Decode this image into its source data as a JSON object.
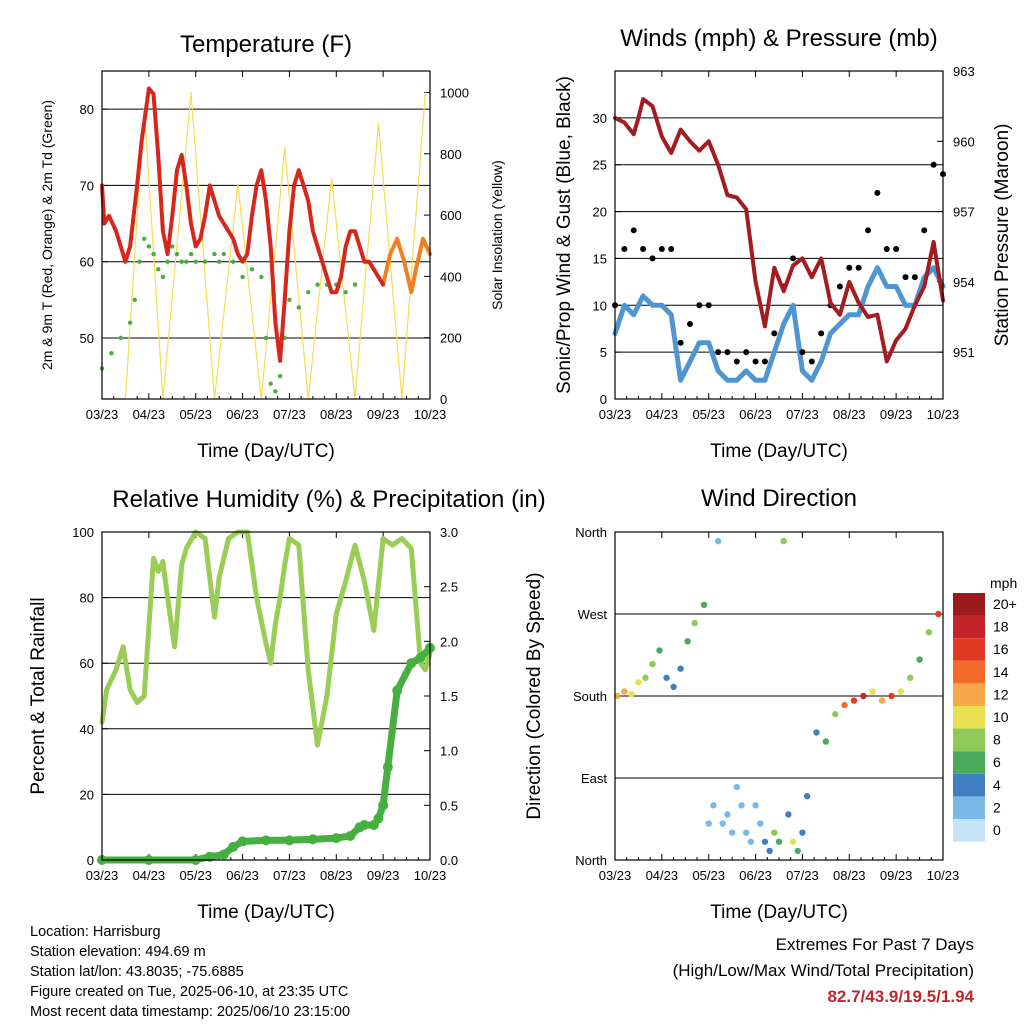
{
  "colors": {
    "temp_red": "#d7261c",
    "temp_orange": "#f07f22",
    "dewpoint_green": "#47b03a",
    "solar_yellow": "#f7dc53",
    "wind_blue": "#4f95d0",
    "gust_black": "#000000",
    "pressure_maroon": "#a41c1f",
    "rh_green": "#9acd55",
    "rain_green": "#45b03f",
    "extremes_red": "#c0272d"
  },
  "shared_x_ticks": [
    "03/23",
    "04/23",
    "05/23",
    "06/23",
    "07/23",
    "08/23",
    "09/23",
    "10/23"
  ],
  "shared_x_label": "Time (Day/UTC)",
  "chart_data": [
    {
      "id": "temperature",
      "type": "line",
      "title": "Temperature (F)",
      "xlabel": "Time (Day/UTC)",
      "ylabel": "2m & 9m T (Red, Orange) & 2m Td (Green)",
      "y2label": "Solar Insolation (Yellow)",
      "xlim": [
        0,
        7
      ],
      "ylim": [
        42,
        85
      ],
      "yticks": [
        50,
        60,
        70,
        80
      ],
      "y2lim": [
        0,
        1070
      ],
      "y2ticks": [
        0,
        200,
        400,
        600,
        800,
        1000
      ],
      "series": [
        {
          "key": "t2m",
          "x": [
            0.0,
            0.05,
            0.15,
            0.3,
            0.5,
            0.6,
            0.75,
            0.85,
            1.0,
            1.1,
            1.2,
            1.3,
            1.4,
            1.5,
            1.6,
            1.7,
            1.8,
            1.9,
            2.0,
            2.1,
            2.2,
            2.3,
            2.4,
            2.5,
            2.6,
            2.7,
            2.8,
            2.9,
            3.0,
            3.1,
            3.2,
            3.3,
            3.4,
            3.5,
            3.6,
            3.7,
            3.8,
            3.9,
            4.0,
            4.1,
            4.2,
            4.3,
            4.4,
            4.5,
            4.6,
            4.7,
            4.8,
            4.9,
            5.0,
            5.1,
            5.2,
            5.3,
            5.4,
            5.5,
            5.6,
            5.7,
            5.8,
            5.9,
            6.0
          ],
          "values": [
            70,
            65,
            66,
            64,
            60,
            62,
            70,
            76,
            82.7,
            82,
            74,
            64,
            61,
            66,
            72,
            74,
            70,
            65,
            62,
            63,
            66,
            70,
            68,
            66,
            65,
            64,
            63,
            61,
            60,
            61,
            66,
            70,
            72,
            68,
            62,
            52,
            47,
            55,
            64,
            70,
            72,
            70,
            68,
            64,
            62,
            60,
            58,
            56,
            56,
            58,
            62,
            64,
            64,
            62,
            60,
            60,
            59,
            58,
            57
          ]
        },
        {
          "key": "t9m",
          "x": [
            6.0,
            6.15,
            6.3,
            6.45,
            6.6,
            6.7,
            6.85,
            7.0
          ],
          "values": [
            57,
            61,
            63,
            60,
            56,
            59,
            63,
            61
          ]
        },
        {
          "key": "td2m",
          "x": [
            0.0,
            0.2,
            0.4,
            0.6,
            0.7,
            0.8,
            0.9,
            1.0,
            1.1,
            1.2,
            1.3,
            1.4,
            1.5,
            1.6,
            1.7,
            1.8,
            1.9,
            2.0,
            2.2,
            2.4,
            2.5,
            2.6,
            2.8,
            3.0,
            3.2,
            3.4,
            3.5,
            3.6,
            3.7,
            3.8,
            3.9,
            4.0,
            4.2,
            4.4,
            4.6,
            4.8,
            5.0,
            5.2,
            5.4
          ],
          "values": [
            46,
            48,
            50,
            52,
            55,
            60,
            63,
            62,
            61,
            59,
            58,
            60,
            62,
            61,
            60,
            60,
            61,
            60,
            60,
            61,
            60,
            61,
            60,
            58,
            59,
            58,
            50,
            44,
            43,
            45,
            50,
            55,
            54,
            56,
            57,
            57,
            57,
            56,
            57
          ]
        },
        {
          "key": "solar",
          "x": [
            0.0,
            0.5,
            0.9,
            1.3,
            1.9,
            2.4,
            2.9,
            3.4,
            3.9,
            4.4,
            4.9,
            5.4,
            5.9,
            6.4,
            6.9
          ],
          "values": [
            0,
            0,
            950,
            0,
            1000,
            0,
            700,
            0,
            820,
            0,
            720,
            0,
            900,
            0,
            1000
          ]
        }
      ]
    },
    {
      "id": "winds",
      "type": "scatter",
      "title": "Winds (mph) & Pressure (mb)",
      "xlabel": "Time (Day/UTC)",
      "ylabel": "Sonic/Prop Wind & Gust (Blue, Black)",
      "y2label": "Station Pressure (Maroon)",
      "xlim": [
        0,
        7
      ],
      "ylim": [
        0,
        35
      ],
      "yticks": [
        0,
        5,
        10,
        15,
        20,
        25,
        30
      ],
      "y2lim": [
        949.0,
        963.0
      ],
      "y2ticks": [
        951,
        954,
        957,
        960,
        963
      ],
      "series": [
        {
          "key": "wind",
          "x": [
            0.0,
            0.2,
            0.4,
            0.6,
            0.8,
            1.0,
            1.2,
            1.4,
            1.6,
            1.8,
            2.0,
            2.2,
            2.4,
            2.6,
            2.8,
            3.0,
            3.2,
            3.4,
            3.6,
            3.8,
            4.0,
            4.2,
            4.4,
            4.6,
            4.8,
            5.0,
            5.2,
            5.4,
            5.6,
            5.8,
            6.0,
            6.2,
            6.4,
            6.6,
            6.8,
            7.0
          ],
          "values": [
            7,
            10,
            9,
            11,
            10,
            10,
            9,
            2,
            4,
            6,
            6,
            3,
            2,
            2,
            3,
            2,
            2,
            5,
            8,
            10,
            3,
            2,
            4,
            7,
            8,
            9,
            9,
            12,
            14,
            12,
            12,
            10,
            10,
            13,
            14,
            12
          ]
        },
        {
          "key": "gust",
          "x": [
            0.0,
            0.2,
            0.4,
            0.6,
            0.8,
            1.0,
            1.2,
            1.4,
            1.6,
            1.8,
            2.0,
            2.2,
            2.4,
            2.6,
            2.8,
            3.0,
            3.2,
            3.4,
            3.6,
            3.8,
            4.0,
            4.2,
            4.4,
            4.6,
            4.8,
            5.0,
            5.2,
            5.4,
            5.6,
            5.8,
            6.0,
            6.2,
            6.4,
            6.6,
            6.8,
            7.0
          ],
          "values": [
            10,
            16,
            18,
            16,
            15,
            16,
            16,
            6,
            8,
            10,
            10,
            5,
            5,
            4,
            5,
            4,
            4,
            7,
            12,
            15,
            5,
            4,
            7,
            10,
            12,
            14,
            14,
            18,
            22,
            16,
            16,
            13,
            13,
            18,
            25,
            24
          ]
        },
        {
          "key": "pressure",
          "x": [
            0.0,
            0.2,
            0.4,
            0.5,
            0.6,
            0.8,
            1.0,
            1.2,
            1.4,
            1.6,
            1.8,
            2.0,
            2.2,
            2.4,
            2.6,
            2.8,
            3.0,
            3.2,
            3.4,
            3.6,
            3.8,
            4.0,
            4.2,
            4.4,
            4.6,
            4.8,
            5.0,
            5.2,
            5.4,
            5.6,
            5.8,
            6.0,
            6.2,
            6.4,
            6.6,
            6.8,
            7.0
          ],
          "values": [
            961.0,
            960.8,
            960.3,
            961.0,
            961.8,
            961.5,
            960.2,
            959.5,
            960.5,
            960.0,
            959.6,
            960.0,
            959.0,
            957.7,
            957.6,
            957.1,
            954.0,
            952.1,
            954.6,
            953.6,
            954.7,
            955.0,
            954.2,
            955.0,
            953.1,
            952.6,
            954.0,
            953.1,
            952.5,
            952.6,
            950.6,
            951.5,
            952.0,
            953.0,
            953.8,
            955.7,
            953.2
          ]
        }
      ]
    },
    {
      "id": "humidity",
      "type": "line",
      "title": "Relative Humidity (%) & Precipitation (in)",
      "xlabel": "Time (Day/UTC)",
      "ylabel": "Percent & Total Rainfall",
      "xlim": [
        0,
        7
      ],
      "ylim": [
        0,
        100
      ],
      "yticks": [
        0,
        20,
        40,
        60,
        80,
        100
      ],
      "y2lim": [
        0,
        3.0
      ],
      "y2ticks": [
        0.0,
        0.5,
        1.0,
        1.5,
        2.0,
        2.5,
        3.0
      ],
      "series": [
        {
          "key": "rh",
          "x": [
            0.0,
            0.1,
            0.3,
            0.45,
            0.6,
            0.75,
            0.9,
            1.1,
            1.2,
            1.3,
            1.4,
            1.55,
            1.7,
            1.8,
            2.0,
            2.2,
            2.4,
            2.5,
            2.7,
            2.9,
            3.1,
            3.3,
            3.5,
            3.6,
            3.7,
            3.8,
            3.9,
            4.0,
            4.2,
            4.4,
            4.6,
            4.8,
            5.0,
            5.2,
            5.4,
            5.6,
            5.8,
            6.0,
            6.2,
            6.4,
            6.6,
            6.8,
            6.9,
            7.0
          ],
          "values": [
            42,
            52,
            58,
            65,
            52,
            48,
            50,
            92,
            88,
            91,
            80,
            65,
            90,
            95,
            100,
            98,
            74,
            86,
            98,
            100,
            100,
            80,
            66,
            60,
            72,
            80,
            90,
            98,
            96,
            58,
            35,
            50,
            75,
            85,
            96,
            85,
            70,
            98,
            96,
            98,
            95,
            60,
            58,
            63
          ]
        },
        {
          "key": "rain",
          "x": [
            0.0,
            1.0,
            2.0,
            2.3,
            2.6,
            2.8,
            3.0,
            3.5,
            4.0,
            4.5,
            5.0,
            5.3,
            5.5,
            5.6,
            5.8,
            5.9,
            6.0,
            6.1,
            6.3,
            6.6,
            6.8,
            7.0
          ],
          "values": [
            0.0,
            0.0,
            0.0,
            0.03,
            0.05,
            0.12,
            0.17,
            0.18,
            0.18,
            0.19,
            0.2,
            0.22,
            0.3,
            0.32,
            0.32,
            0.38,
            0.5,
            0.85,
            1.55,
            1.8,
            1.85,
            1.94
          ]
        }
      ]
    },
    {
      "id": "wind_direction",
      "type": "scatter",
      "title": "Wind Direction",
      "xlabel": "Time (Day/UTC)",
      "ylabel": "Direction (Colored By Speed)",
      "xlim": [
        0,
        7
      ],
      "ylim": [
        0,
        360
      ],
      "yticks": [
        0,
        90,
        180,
        270,
        360
      ],
      "yticklabels": [
        "North",
        "East",
        "South",
        "West",
        "North"
      ],
      "legend_title": "mph",
      "legend_labels": [
        "20+",
        "18",
        "16",
        "14",
        "12",
        "10",
        "8",
        "6",
        "4",
        "2",
        "0"
      ],
      "legend_colors": [
        "#9a1a1d",
        "#c4242a",
        "#e33a26",
        "#f26b2a",
        "#f7a84a",
        "#e8e050",
        "#8fc95a",
        "#4aa95a",
        "#3f7fc0",
        "#79b7e6",
        "#c3e3f6"
      ],
      "series": [
        {
          "key": "dir_points",
          "x": [
            0.05,
            0.2,
            0.35,
            0.5,
            0.65,
            0.8,
            0.95,
            1.1,
            1.25,
            1.4,
            1.55,
            1.7,
            1.9,
            2.0,
            2.1,
            2.2,
            2.3,
            2.4,
            2.5,
            2.6,
            2.7,
            2.8,
            2.9,
            3.0,
            3.1,
            3.2,
            3.3,
            3.4,
            3.5,
            3.6,
            3.7,
            3.8,
            3.9,
            4.0,
            4.1,
            4.3,
            4.5,
            4.7,
            4.9,
            5.1,
            5.3,
            5.5,
            5.7,
            5.9,
            6.1,
            6.3,
            6.5,
            6.7,
            6.9
          ],
          "y": [
            180,
            185,
            182,
            195,
            200,
            215,
            230,
            200,
            190,
            210,
            240,
            260,
            280,
            40,
            60,
            350,
            40,
            50,
            30,
            80,
            60,
            30,
            20,
            60,
            40,
            20,
            10,
            30,
            20,
            350,
            50,
            20,
            10,
            30,
            70,
            140,
            130,
            160,
            170,
            175,
            180,
            185,
            175,
            180,
            185,
            200,
            220,
            250,
            270
          ],
          "speed": [
            12,
            12,
            10,
            10,
            8,
            8,
            6,
            4,
            4,
            4,
            6,
            8,
            6,
            2,
            2,
            2,
            2,
            2,
            2,
            2,
            2,
            1,
            1,
            2,
            2,
            3,
            3,
            8,
            6,
            8,
            4,
            10,
            6,
            4,
            4,
            4,
            6,
            8,
            14,
            16,
            18,
            10,
            12,
            16,
            10,
            8,
            6,
            8,
            16
          ]
        }
      ]
    }
  ],
  "info": {
    "location": "Location: Harrisburg",
    "elevation": "Station elevation: 494.69 m",
    "latlon": "Station lat/lon: 43.8035; -75.6885",
    "created": "Figure created on Tue, 2025-06-10, at 23:35 UTC",
    "recent": "Most recent data timestamp: 2025/06/10 23:15:00"
  },
  "extremes": {
    "title": "Extremes For Past 7 Days",
    "subtitle": "(High/Low/Max Wind/Total Precipitation)",
    "values": "82.7/43.9/19.5/1.94"
  }
}
